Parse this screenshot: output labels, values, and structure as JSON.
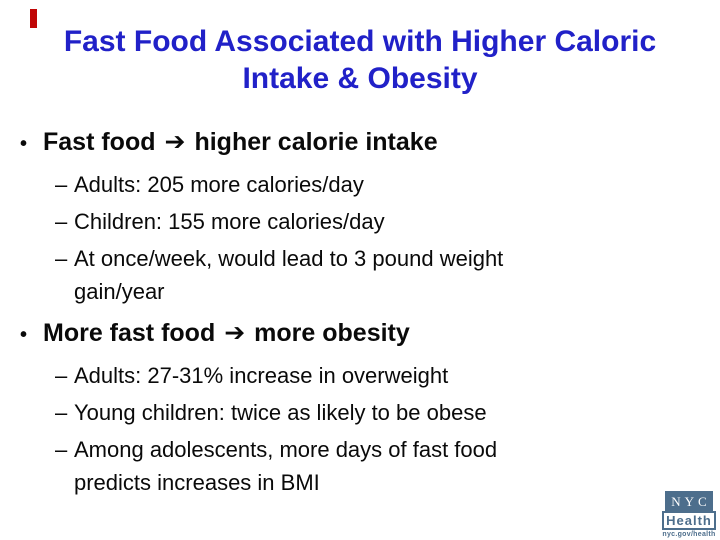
{
  "colors": {
    "title_blue": "#2121c8",
    "body_text": "#0a0a0a",
    "red_mark": "#c00606",
    "logo_slate": "#4d6e8c",
    "background": "#ffffff"
  },
  "title": {
    "lines": [
      "Fast Food Associated with Higher Caloric",
      "Intake & Obesity"
    ]
  },
  "bullets": [
    {
      "marker": "•",
      "text_before_arrow": "Fast food",
      "arrow": "➔",
      "text_after_arrow": "higher calorie intake",
      "subs": [
        {
          "dash": "–",
          "lines": [
            "Adults: 205 more calories/day"
          ]
        },
        {
          "dash": "–",
          "lines": [
            "Children: 155 more calories/day"
          ]
        },
        {
          "dash": "–",
          "lines": [
            "At once/week, would lead to 3 pound weight",
            "gain/year"
          ]
        }
      ]
    },
    {
      "marker": "•",
      "text_before_arrow": "More fast food",
      "arrow": "➔",
      "text_after_after": "",
      "text_after_arrow": "more obesity",
      "subs": [
        {
          "dash": "–",
          "lines": [
            "Adults: 27-31% increase in overweight"
          ]
        },
        {
          "dash": "–",
          "lines": [
            "Young children: twice as likely to be obese"
          ]
        },
        {
          "dash": "–",
          "lines": [
            "Among adolescents, more days of fast food",
            "predicts increases in BMI"
          ]
        }
      ]
    }
  ],
  "logo": {
    "nyc": "NYC",
    "health": "Health",
    "url": "nyc.gov/health"
  }
}
